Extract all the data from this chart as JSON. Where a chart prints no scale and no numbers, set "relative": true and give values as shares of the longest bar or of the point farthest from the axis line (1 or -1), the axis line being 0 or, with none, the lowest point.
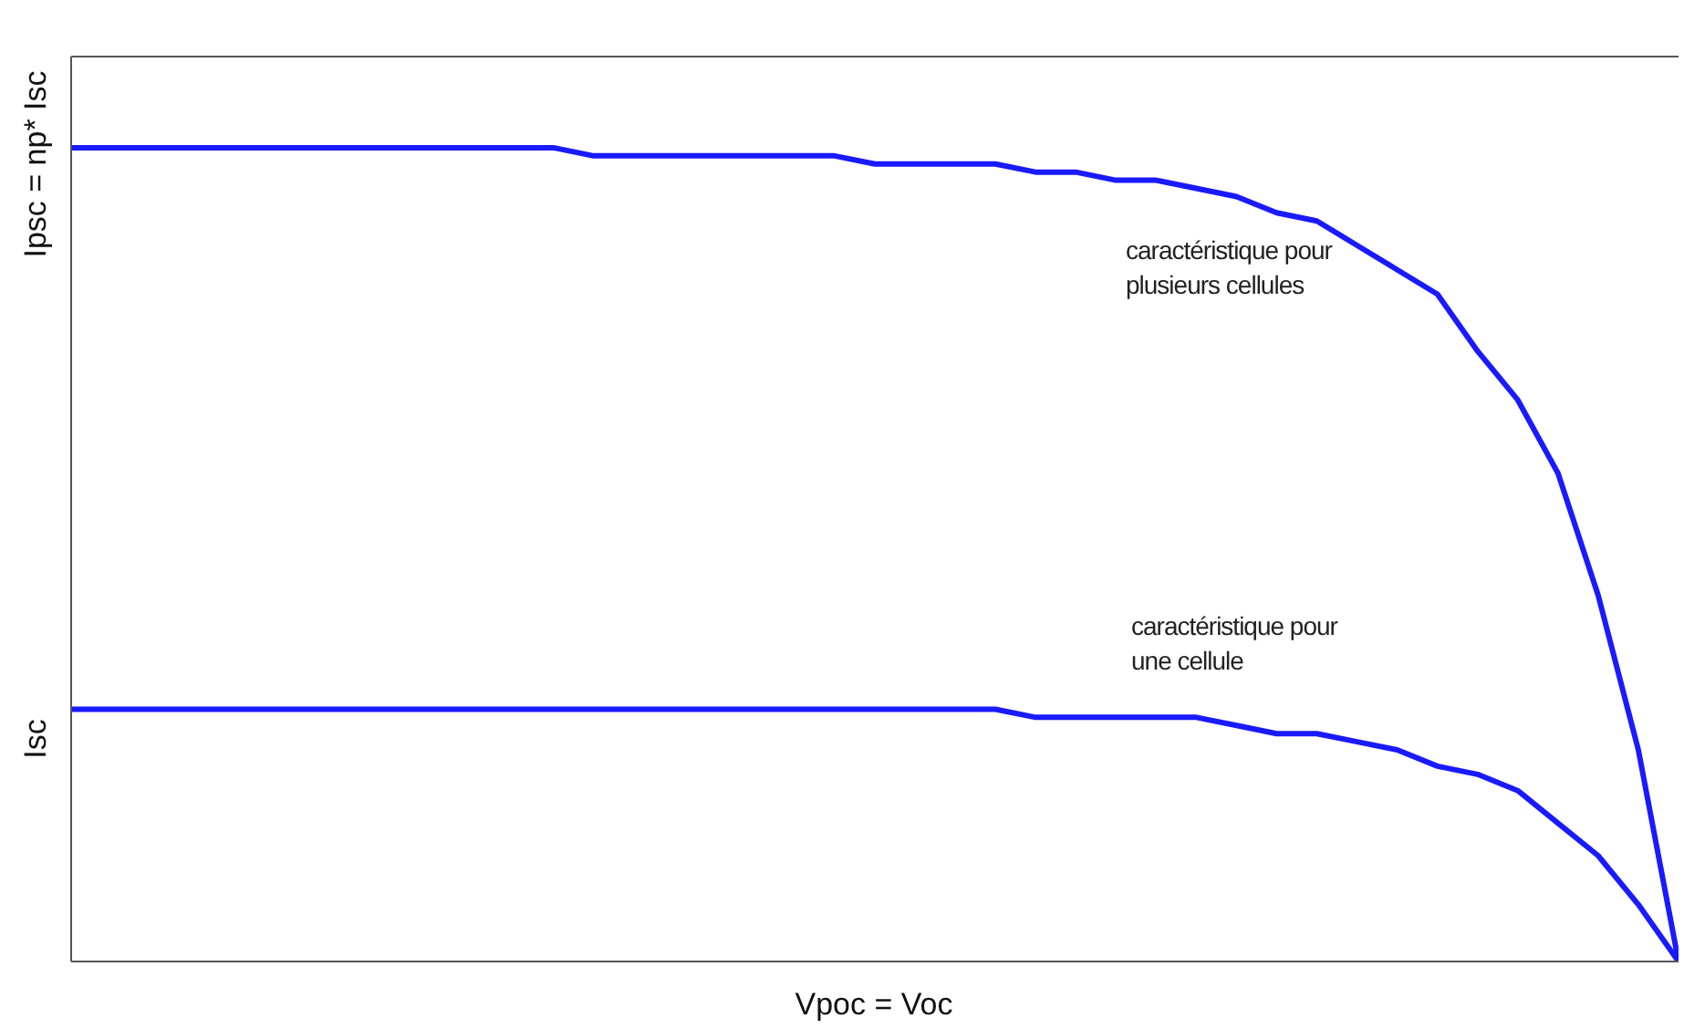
{
  "chart_data": {
    "type": "line",
    "relative": true,
    "xlabel": "Vpoc = Voc",
    "categories": [
      null,
      null,
      null,
      null,
      null,
      null,
      null,
      null,
      null,
      null,
      null,
      null,
      null,
      null,
      null,
      null,
      null,
      null,
      null,
      null,
      null,
      null,
      null,
      null,
      null,
      null,
      null,
      null,
      null,
      null,
      null,
      null,
      null,
      null,
      null,
      null,
      null,
      null,
      null,
      null,
      null
    ],
    "series": [
      {
        "color": "#1a1aff",
        "values": [
          1,
          1,
          1,
          1,
          1,
          1,
          1,
          1,
          1,
          1,
          1,
          1,
          1,
          0.99,
          0.99,
          0.99,
          0.99,
          0.99,
          0.99,
          0.99,
          0.98,
          0.98,
          0.98,
          0.98,
          0.97,
          0.97,
          0.96,
          0.96,
          0.95,
          0.94,
          0.92,
          0.91,
          0.88,
          0.85,
          0.82,
          0.75,
          0.69,
          0.6,
          0.45,
          0.26,
          0
        ]
      },
      {
        "color": "#1a1aff",
        "values": [
          0.31,
          0.31,
          0.31,
          0.31,
          0.31,
          0.31,
          0.31,
          0.31,
          0.31,
          0.31,
          0.31,
          0.31,
          0.31,
          0.31,
          0.31,
          0.31,
          0.31,
          0.31,
          0.31,
          0.31,
          0.31,
          0.31,
          0.31,
          0.31,
          0.3,
          0.3,
          0.3,
          0.3,
          0.3,
          0.29,
          0.28,
          0.28,
          0.27,
          0.26,
          0.24,
          0.23,
          0.21,
          0.17,
          0.13,
          0.07,
          0
        ]
      }
    ],
    "annotations": [
      "Ipsc = np* Isc",
      "Isc",
      "caractéristique pour\nplusieurs cellules",
      "caractéristique pour\nune cellule"
    ],
    "grid": false,
    "legend": false,
    "marker": "none",
    "line_style": "solid"
  }
}
